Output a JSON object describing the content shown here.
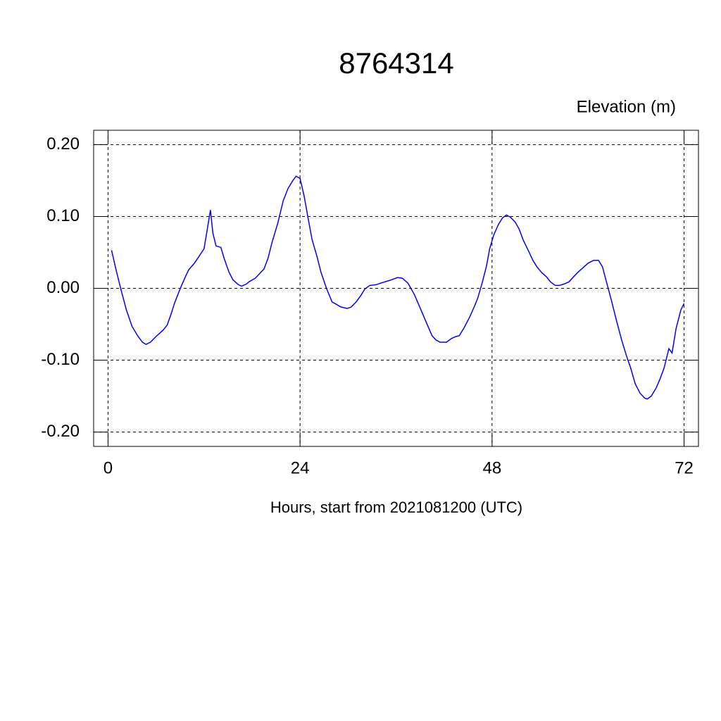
{
  "chart_data": {
    "type": "line",
    "title": "8764314",
    "ylabel": "Elevation (m)",
    "xlabel": "Hours, start from 2021081200 (UTC)",
    "xlim": [
      -1.8,
      73.8
    ],
    "ylim": [
      -0.22,
      0.22
    ],
    "xticks": [
      0,
      24,
      48,
      72
    ],
    "yticks": [
      {
        "value": -0.2,
        "label": "-0.20"
      },
      {
        "value": -0.1,
        "label": "-0.10"
      },
      {
        "value": 0,
        "label": "0.00"
      },
      {
        "value": 0.1,
        "label": "0.10"
      },
      {
        "value": 0.2,
        "label": "0.20"
      }
    ],
    "grid": true,
    "series": [
      {
        "color": "#0000ff",
        "x": [
          0.44,
          1.06,
          1.67,
          2.29,
          3.0,
          3.7,
          4.3,
          4.75,
          5.3,
          6.0,
          6.9,
          7.4,
          7.9,
          8.3,
          9.0,
          9.7,
          10.1,
          10.8,
          11.4,
          12.0,
          12.4,
          12.8,
          13.1,
          13.5,
          14.1,
          14.5,
          15.1,
          15.6,
          16.3,
          16.7,
          17.3,
          17.6,
          18.4,
          18.9,
          19.5,
          20.0,
          20.5,
          21.2,
          21.9,
          22.5,
          23.1,
          23.5,
          24.0,
          24.5,
          25.0,
          25.5,
          26.1,
          26.6,
          27.3,
          28.0,
          28.5,
          29.1,
          29.9,
          30.4,
          31.0,
          31.6,
          32.1,
          32.7,
          33.5,
          34.3,
          35.2,
          36.2,
          36.8,
          37.5,
          38.3,
          39.0,
          39.8,
          40.5,
          41.0,
          41.5,
          42.3,
          42.9,
          43.5,
          43.9,
          44.5,
          45.2,
          45.8,
          46.2,
          46.8,
          47.3,
          47.7,
          48.2,
          48.8,
          49.3,
          49.8,
          50.3,
          50.9,
          51.4,
          51.9,
          52.6,
          53.1,
          53.6,
          54.2,
          54.8,
          55.3,
          55.9,
          56.4,
          57.0,
          57.6,
          58.1,
          58.7,
          59.3,
          60.0,
          60.7,
          61.3,
          61.8,
          62.2,
          62.9,
          63.6,
          64.2,
          64.8,
          65.3,
          65.9,
          66.5,
          67.1,
          67.4,
          67.9,
          68.5,
          69.0,
          69.5,
          70.1,
          70.5,
          71.0,
          71.6,
          72.0
        ],
        "values": [
          0.053,
          0.023,
          -0.004,
          -0.03,
          -0.053,
          -0.066,
          -0.075,
          -0.078,
          -0.075,
          -0.067,
          -0.058,
          -0.051,
          -0.035,
          -0.021,
          -0.001,
          0.017,
          0.026,
          0.035,
          0.045,
          0.055,
          0.082,
          0.109,
          0.077,
          0.059,
          0.057,
          0.042,
          0.023,
          0.012,
          0.005,
          0.003,
          0.006,
          0.009,
          0.014,
          0.02,
          0.027,
          0.042,
          0.064,
          0.09,
          0.122,
          0.139,
          0.15,
          0.156,
          0.153,
          0.129,
          0.098,
          0.068,
          0.045,
          0.023,
          0.0,
          -0.019,
          -0.022,
          -0.026,
          -0.028,
          -0.026,
          -0.019,
          -0.01,
          -0.001,
          0.004,
          0.005,
          0.008,
          0.011,
          0.015,
          0.014,
          0.007,
          -0.009,
          -0.027,
          -0.048,
          -0.066,
          -0.072,
          -0.075,
          -0.075,
          -0.07,
          -0.067,
          -0.066,
          -0.055,
          -0.04,
          -0.025,
          -0.014,
          0.009,
          0.031,
          0.055,
          0.074,
          0.089,
          0.098,
          0.102,
          0.099,
          0.092,
          0.082,
          0.067,
          0.051,
          0.039,
          0.03,
          0.022,
          0.016,
          0.009,
          0.004,
          0.004,
          0.006,
          0.009,
          0.015,
          0.022,
          0.028,
          0.035,
          0.039,
          0.039,
          0.03,
          0.013,
          -0.016,
          -0.047,
          -0.072,
          -0.094,
          -0.11,
          -0.133,
          -0.146,
          -0.153,
          -0.154,
          -0.15,
          -0.139,
          -0.126,
          -0.111,
          -0.084,
          -0.09,
          -0.056,
          -0.03,
          -0.021
        ]
      }
    ]
  }
}
